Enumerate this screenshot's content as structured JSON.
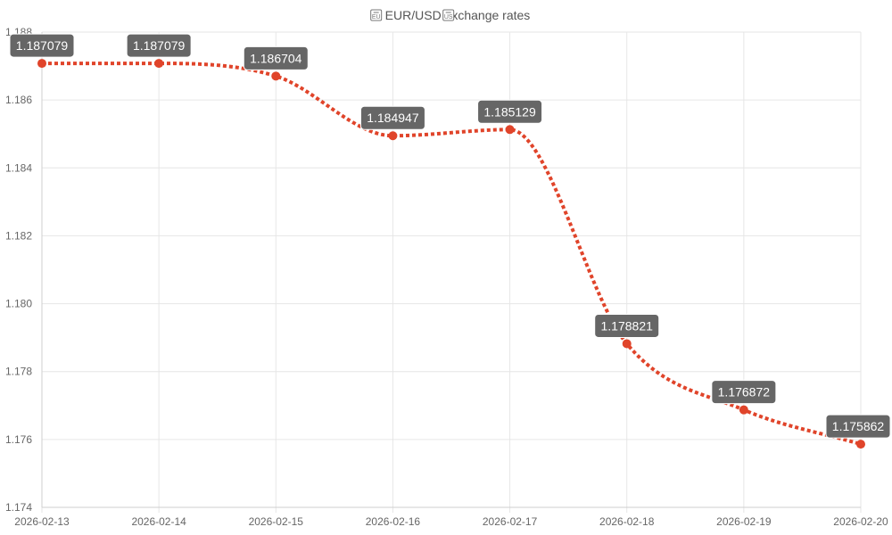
{
  "chart_data": {
    "type": "line",
    "title": "EUR/USD exchange rates",
    "title_flag_icons": [
      "eu-flag-icon",
      "us-flag-icon"
    ],
    "x": [
      "2026-02-13",
      "2026-02-14",
      "2026-02-15",
      "2026-02-16",
      "2026-02-17",
      "2026-02-18",
      "2026-02-19",
      "2026-02-20"
    ],
    "series": [
      {
        "values": [
          1.187079,
          1.187079,
          1.186704,
          1.184947,
          1.185129,
          1.178821,
          1.176872,
          1.175862
        ],
        "labels": [
          "1.187079",
          "1.187079",
          "1.186704",
          "1.184947",
          "1.185129",
          "1.178821",
          "1.176872",
          "1.175862"
        ],
        "color": "#e0442a",
        "line_style": "dotted",
        "curve": "smooth"
      }
    ],
    "ylim": [
      1.174,
      1.188
    ],
    "yticks": [
      "1.174",
      "1.176",
      "1.178",
      "1.180",
      "1.182",
      "1.184",
      "1.186",
      "1.188"
    ],
    "grid": true,
    "label_background": "#666666"
  }
}
